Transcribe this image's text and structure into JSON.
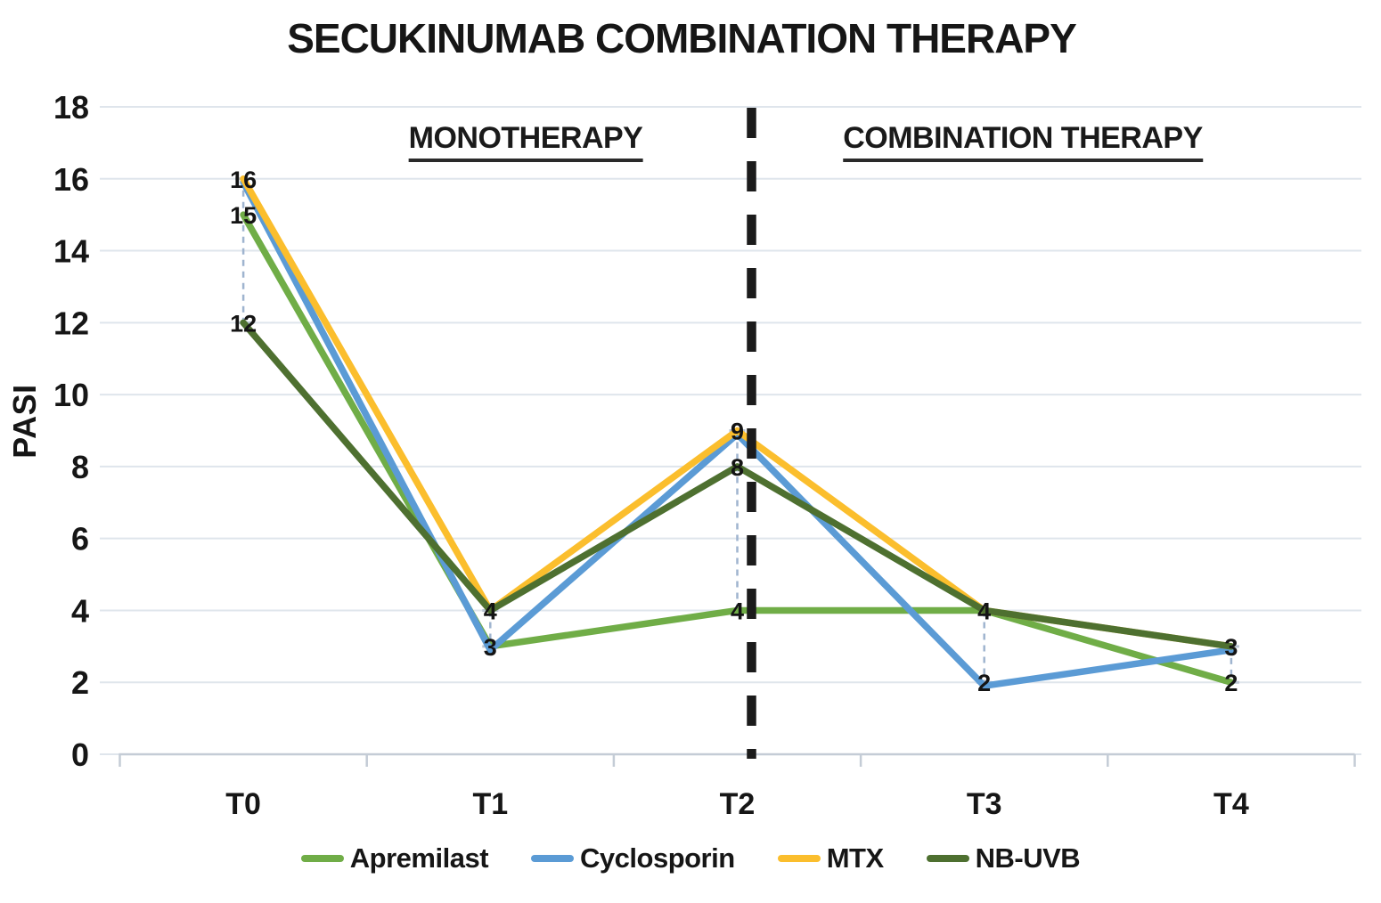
{
  "title": "SECUKINUMAB COMBINATION THERAPY",
  "regions": {
    "left": "MONOTHERAPY",
    "right": "COMBINATION THERAPY"
  },
  "chart_data": {
    "type": "line",
    "title": "SECUKINUMAB COMBINATION THERAPY",
    "categories": [
      "T0",
      "T1",
      "T2",
      "T3",
      "T4"
    ],
    "series": [
      {
        "name": "Apremilast",
        "color": "#70AD47",
        "values": [
          15,
          3,
          4,
          4,
          2
        ]
      },
      {
        "name": "Cyclosporin",
        "color": "#5B9BD5",
        "values": [
          16,
          3,
          9,
          2,
          3
        ]
      },
      {
        "name": "MTX",
        "color": "#FBBE2D",
        "values": [
          16,
          4,
          9,
          4,
          3
        ]
      },
      {
        "name": "NB-UVB",
        "color": "#4E7030",
        "values": [
          12,
          4,
          8,
          4,
          3
        ]
      }
    ],
    "xlabel": "",
    "ylabel": "PASI",
    "ylim": [
      0,
      18
    ],
    "ytick_step": 2,
    "grid": true,
    "legend_position": "bottom",
    "separator_after": "T2",
    "region_labels": [
      "MONOTHERAPY",
      "COMBINATION THERAPY"
    ],
    "data_labels": [
      [
        16,
        15,
        12
      ],
      [
        4,
        3
      ],
      [
        9,
        8,
        4
      ],
      [
        4,
        2
      ],
      [
        3,
        2
      ]
    ],
    "high_low_lines": true
  },
  "colors": {
    "separator": "#1b1b1b",
    "gridline": "#dfe5ec",
    "axis": "#c4ccd6",
    "connector": "#9fb4cf",
    "label": "#141414"
  }
}
